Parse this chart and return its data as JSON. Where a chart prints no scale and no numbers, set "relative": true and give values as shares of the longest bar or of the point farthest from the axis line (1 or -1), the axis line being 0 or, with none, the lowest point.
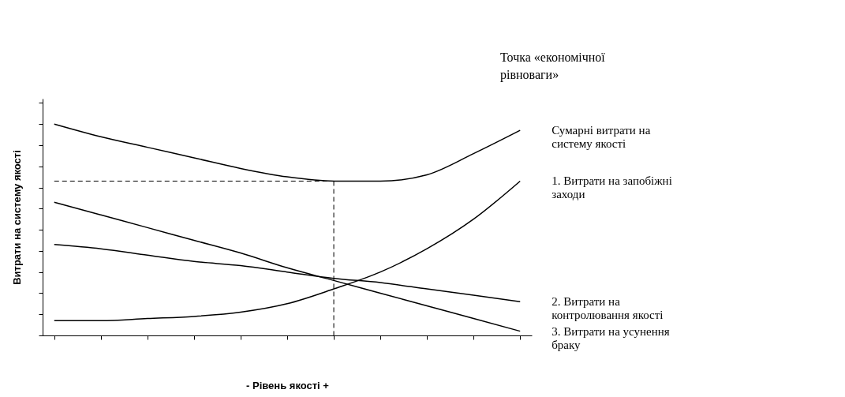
{
  "chart_data": {
    "type": "line",
    "relative": true,
    "xlabel": "-          Рівень якості     +",
    "ylabel": "Витрати на систему якості",
    "categories": [
      null,
      null,
      null,
      null,
      null,
      null,
      null,
      null,
      null,
      null,
      null
    ],
    "series": [
      {
        "name": "Сумарні витрати на систему якості",
        "color": "#000000",
        "values": [
          1,
          0.94,
          0.89,
          0.84,
          0.79,
          0.75,
          0.73,
          0.73,
          0.76,
          0.86,
          0.97
        ]
      },
      {
        "name": "1. Витрати на запобіжні заходи",
        "color": "#000000",
        "values": [
          0.07,
          0.07,
          0.08,
          0.09,
          0.11,
          0.15,
          0.22,
          0.3,
          0.41,
          0.55,
          0.73
        ]
      },
      {
        "name": "2. Витрати на контролювання якості",
        "color": "#000000",
        "values": [
          0.43,
          0.41,
          0.38,
          0.35,
          0.33,
          0.3,
          0.27,
          0.25,
          0.22,
          0.19,
          0.16
        ]
      },
      {
        "name": "3. Витрати на усунення браку",
        "color": "#000000",
        "values": [
          0.63,
          0.57,
          0.51,
          0.45,
          0.39,
          0.32,
          0.26,
          0.2,
          0.14,
          0.08,
          0.02
        ]
      }
    ],
    "ref_lines": [
      {
        "axis": "y",
        "value": 0.73,
        "line_style": "dashed"
      }
    ],
    "annotations": [
      "Точка «економічної рівноваги»"
    ],
    "legend": false,
    "grid": false,
    "marker": "none",
    "line_style": "solid"
  }
}
